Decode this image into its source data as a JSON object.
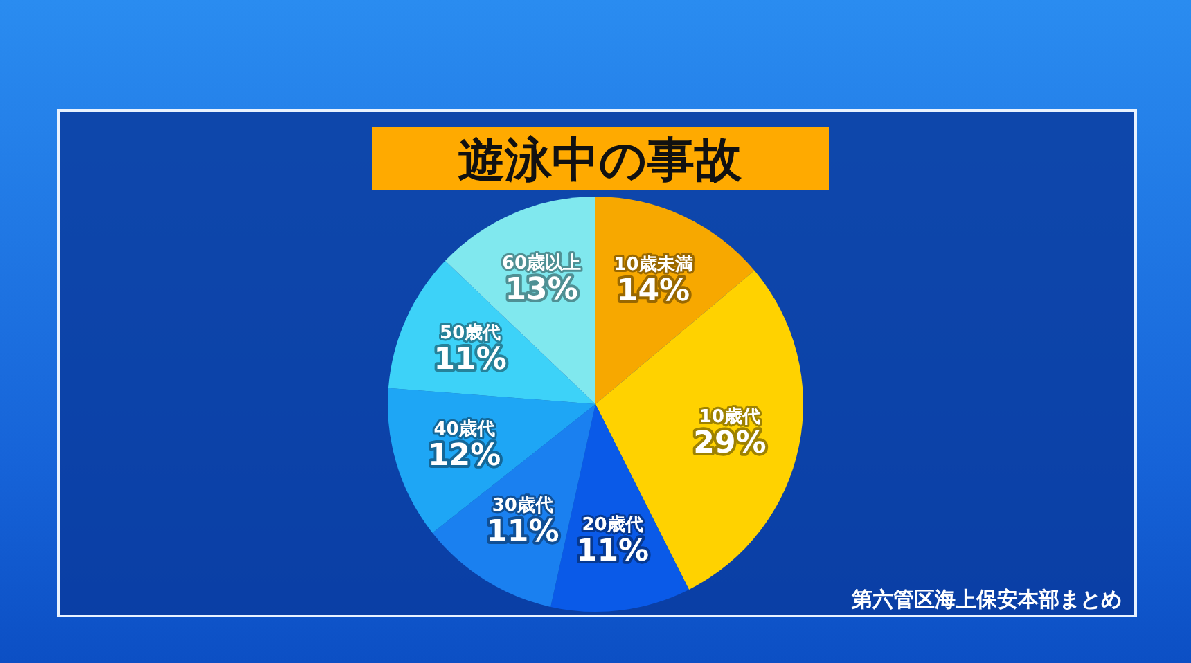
{
  "chart_data": {
    "type": "pie",
    "title": "遊泳中の事故",
    "categories": [
      "10歳未満",
      "10歳代",
      "20歳代",
      "30歳代",
      "40歳代",
      "50歳代",
      "60歳以上"
    ],
    "values": [
      14,
      29,
      11,
      11,
      12,
      11,
      13
    ],
    "colors": [
      "#f7a800",
      "#ffd200",
      "#0a5ae8",
      "#1a80f0",
      "#1ea6f5",
      "#3dd2f8",
      "#80e8ee"
    ],
    "value_labels": [
      "14%",
      "29%",
      "11%",
      "11%",
      "12%",
      "11%",
      "13%"
    ],
    "annotations": [
      "第六管区海上保安本部まとめ"
    ]
  }
}
